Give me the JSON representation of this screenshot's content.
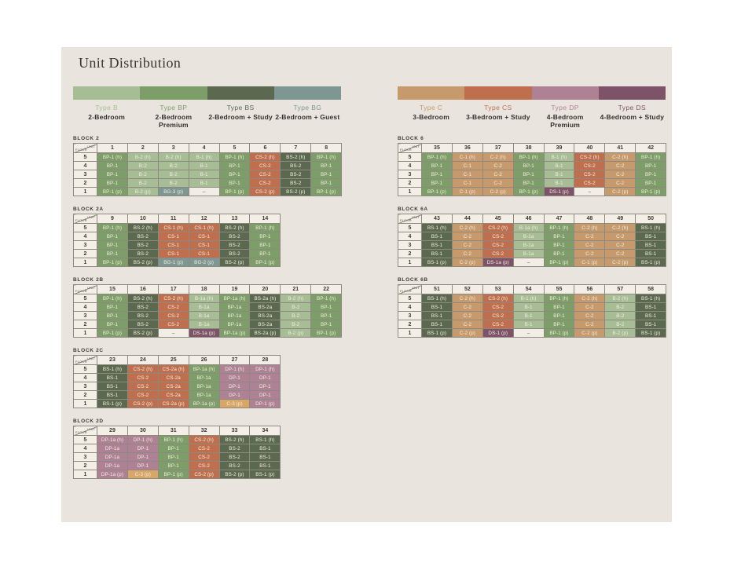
{
  "title": "Unit Distribution",
  "empty_symbol": "–",
  "corner": {
    "top": "UNIT",
    "bottom": "FLOOR"
  },
  "floors": [
    "5",
    "4",
    "3",
    "2",
    "1"
  ],
  "type_colors": {
    "B": "#a6bd95",
    "BP": "#7d9e68",
    "BS": "#5b6950",
    "BG": "#7e9793",
    "C": "#c69a6c",
    "C3": "#d8a768",
    "CS": "#c06f4e",
    "DP": "#ae8195",
    "DS": "#7e5269",
    "empty": "#f2eee6"
  },
  "legends": [
    {
      "side": "left",
      "items": [
        {
          "code": "B",
          "label": "Type B",
          "desc": "2-Bedroom"
        },
        {
          "code": "BP",
          "label": "Type BP",
          "desc": "2-Bedroom Premium"
        },
        {
          "code": "BS",
          "label": "Type BS",
          "desc": "2-Bedroom + Study"
        },
        {
          "code": "BG",
          "label": "Type BG",
          "desc": "2-Bedroom + Guest"
        }
      ]
    },
    {
      "side": "right",
      "items": [
        {
          "code": "C",
          "label": "Type C",
          "desc": "3-Bedroom"
        },
        {
          "code": "CS",
          "label": "Type CS",
          "desc": "3-Bedroom + Study"
        },
        {
          "code": "DP",
          "label": "Type DP",
          "desc": "4-Bedroom Premium"
        },
        {
          "code": "DS",
          "label": "Type DS",
          "desc": "4-Bedroom + Study"
        }
      ]
    }
  ],
  "blocks": [
    {
      "name": "BLOCK 2",
      "column": "left",
      "units": [
        "1",
        "2",
        "3",
        "4",
        "5",
        "6",
        "7",
        "8"
      ],
      "rows": [
        [
          "BP-1 (h)",
          "B-2 (h)",
          "B-2 (h)",
          "B-1 (h)",
          "BP-1 (h)",
          "CS-2 (h)",
          "BS-2 (h)",
          "BP-1 (h)"
        ],
        [
          "BP-1",
          "B-2",
          "B-2",
          "B-1",
          "BP-1",
          "CS-2",
          "BS-2",
          "BP-1"
        ],
        [
          "BP-1",
          "B-2",
          "B-2",
          "B-1",
          "BP-1",
          "CS-2",
          "BS-2",
          "BP-1"
        ],
        [
          "BP-1",
          "B-2",
          "B-2",
          "B-1",
          "BP-1",
          "CS-2",
          "BS-2",
          "BP-1"
        ],
        [
          "BP-1 (p)",
          "B-2 (p)",
          "BG-3 (p)",
          "–",
          "BP-1 (p)",
          "CS-2 (p)",
          "BS-2 (p)",
          "BP-1 (p)"
        ]
      ]
    },
    {
      "name": "BLOCK 2A",
      "column": "left",
      "units": [
        "9",
        "10",
        "11",
        "12",
        "13",
        "14"
      ],
      "rows": [
        [
          "BP-1 (h)",
          "BS-2 (h)",
          "CS-1 (h)",
          "CS-1 (h)",
          "BS-2 (h)",
          "BP-1 (h)"
        ],
        [
          "BP-1",
          "BS-2",
          "CS-1",
          "CS-1",
          "BS-2",
          "BP-1"
        ],
        [
          "BP-1",
          "BS-2",
          "CS-1",
          "CS-1",
          "BS-2",
          "BP-1"
        ],
        [
          "BP-1",
          "BS-2",
          "CS-1",
          "CS-1",
          "BS-2",
          "BP-1"
        ],
        [
          "BP-1 (p)",
          "BS-2 (p)",
          "BG-1 (p)",
          "BG-2 (p)",
          "BS-2 (p)",
          "BP-1 (p)"
        ]
      ]
    },
    {
      "name": "BLOCK 2B",
      "column": "left",
      "units": [
        "15",
        "16",
        "17",
        "18",
        "19",
        "20",
        "21",
        "22"
      ],
      "rows": [
        [
          "BP-1 (h)",
          "BS-2 (h)",
          "CS-2 (h)",
          "B-1a (h)",
          "BP-1a (h)",
          "BS-2a (h)",
          "B-2 (h)",
          "BP-1 (h)"
        ],
        [
          "BP-1",
          "BS-2",
          "CS-2",
          "B-1a",
          "BP-1a",
          "BS-2a",
          "B-2",
          "BP-1"
        ],
        [
          "BP-1",
          "BS-2",
          "CS-2",
          "B-1a",
          "BP-1a",
          "BS-2a",
          "B-2",
          "BP-1"
        ],
        [
          "BP-1",
          "BS-2",
          "CS-2",
          "B-1a",
          "BP-1a",
          "BS-2a",
          "B-2",
          "BP-1"
        ],
        [
          "BP-1 (p)",
          "BS-2 (p)",
          "–",
          "DS-1a (p)",
          "BP-1a (p)",
          "BS-2a (p)",
          "B-2 (p)",
          "BP-1 (p)"
        ]
      ]
    },
    {
      "name": "BLOCK 2C",
      "column": "left",
      "units": [
        "23",
        "24",
        "25",
        "26",
        "27",
        "28"
      ],
      "rows": [
        [
          "BS-1 (h)",
          "CS-2 (h)",
          "CS-2a (h)",
          "BP-1a (h)",
          "DP-1 (h)",
          "DP-1 (h)"
        ],
        [
          "BS-1",
          "CS-2",
          "CS-2a",
          "BP-1a",
          "DP-1",
          "DP-1"
        ],
        [
          "BS-1",
          "CS-2",
          "CS-2a",
          "BP-1a",
          "DP-1",
          "DP-1"
        ],
        [
          "BS-1",
          "CS-2",
          "CS-2a",
          "BP-1a",
          "DP-1",
          "DP-1"
        ],
        [
          "BS-1 (p)",
          "CS-2 (p)",
          "CS-2a (p)",
          "BP-1a (p)",
          "C-3 (p)",
          "DP-1 (p)"
        ]
      ]
    },
    {
      "name": "BLOCK 2D",
      "column": "left",
      "units": [
        "29",
        "30",
        "31",
        "32",
        "33",
        "34"
      ],
      "rows": [
        [
          "DP-1a (h)",
          "DP-1 (h)",
          "BP-1 (h)",
          "CS-2 (h)",
          "BS-2 (h)",
          "BS-1 (h)"
        ],
        [
          "DP-1a",
          "DP-1",
          "BP-1",
          "CS-2",
          "BS-2",
          "BS-1"
        ],
        [
          "DP-1a",
          "DP-1",
          "BP-1",
          "CS-2",
          "BS-2",
          "BS-1"
        ],
        [
          "DP-1a",
          "DP-1",
          "BP-1",
          "CS-2",
          "BS-2",
          "BS-1"
        ],
        [
          "DP-1a (p)",
          "C-3 (p)",
          "BP-1 (p)",
          "CS-2 (p)",
          "BS-2 (p)",
          "BS-1 (p)"
        ]
      ]
    },
    {
      "name": "BLOCK 6",
      "column": "right",
      "units": [
        "35",
        "36",
        "37",
        "38",
        "39",
        "40",
        "41",
        "42"
      ],
      "rows": [
        [
          "BP-1 (h)",
          "C-1 (h)",
          "C-2 (h)",
          "BP-1 (h)",
          "B-1 (h)",
          "CS-2 (h)",
          "C-2 (h)",
          "BP-1 (h)"
        ],
        [
          "BP-1",
          "C-1",
          "C-2",
          "BP-1",
          "B-1",
          "CS-2",
          "C-2",
          "BP-1"
        ],
        [
          "BP-1",
          "C-1",
          "C-2",
          "BP-1",
          "B-1",
          "CS-2",
          "C-2",
          "BP-1"
        ],
        [
          "BP-1",
          "C-1",
          "C-2",
          "BP-1",
          "B-1",
          "CS-2",
          "C-2",
          "BP-1"
        ],
        [
          "BP-1 (p)",
          "C-1 (p)",
          "C-2 (p)",
          "BP-1 (p)",
          "DS-1 (p)",
          "–",
          "C-2 (p)",
          "BP-1 (p)"
        ]
      ]
    },
    {
      "name": "BLOCK 6A",
      "column": "right",
      "units": [
        "43",
        "44",
        "45",
        "46",
        "47",
        "48",
        "49",
        "50"
      ],
      "rows": [
        [
          "BS-1 (h)",
          "C-2 (h)",
          "CS-2 (h)",
          "B-1a (h)",
          "BP-1 (h)",
          "C-2 (h)",
          "C-2 (h)",
          "BS-1 (h)"
        ],
        [
          "BS-1",
          "C-2",
          "CS-2",
          "B-1a",
          "BP-1",
          "C-2",
          "C-2",
          "BS-1"
        ],
        [
          "BS-1",
          "C-2",
          "CS-2",
          "B-1a",
          "BP-1",
          "C-2",
          "C-2",
          "BS-1"
        ],
        [
          "BS-1",
          "C-2",
          "CS-2",
          "B-1a",
          "BP-1",
          "C-2",
          "C-2",
          "BS-1"
        ],
        [
          "BS-1 (p)",
          "C-2 (p)",
          "DS-1a (p)",
          "–",
          "BP-1 (p)",
          "C-1 (p)",
          "C-2 (p)",
          "BS-1 (p)"
        ]
      ]
    },
    {
      "name": "BLOCK 6B",
      "column": "right",
      "units": [
        "51",
        "52",
        "53",
        "54",
        "55",
        "56",
        "57",
        "58"
      ],
      "rows": [
        [
          "BS-1 (h)",
          "C-2 (h)",
          "CS-2 (h)",
          "B-1 (h)",
          "BP-1 (h)",
          "C-2 (h)",
          "B-2 (h)",
          "BS-1 (h)"
        ],
        [
          "BS-1",
          "C-2",
          "CS-2",
          "B-1",
          "BP-1",
          "C-2",
          "B-2",
          "BS-1"
        ],
        [
          "BS-1",
          "C-2",
          "CS-2",
          "B-1",
          "BP-1",
          "C-2",
          "B-2",
          "BS-1"
        ],
        [
          "BS-1",
          "C-2",
          "CS-2",
          "B-1",
          "BP-1",
          "C-2",
          "B-2",
          "BS-1"
        ],
        [
          "BS-1 (p)",
          "C-2 (p)",
          "DS-1 (p)",
          "–",
          "BP-1 (p)",
          "C-2 (p)",
          "B-2 (p)",
          "BS-1 (p)"
        ]
      ]
    }
  ]
}
